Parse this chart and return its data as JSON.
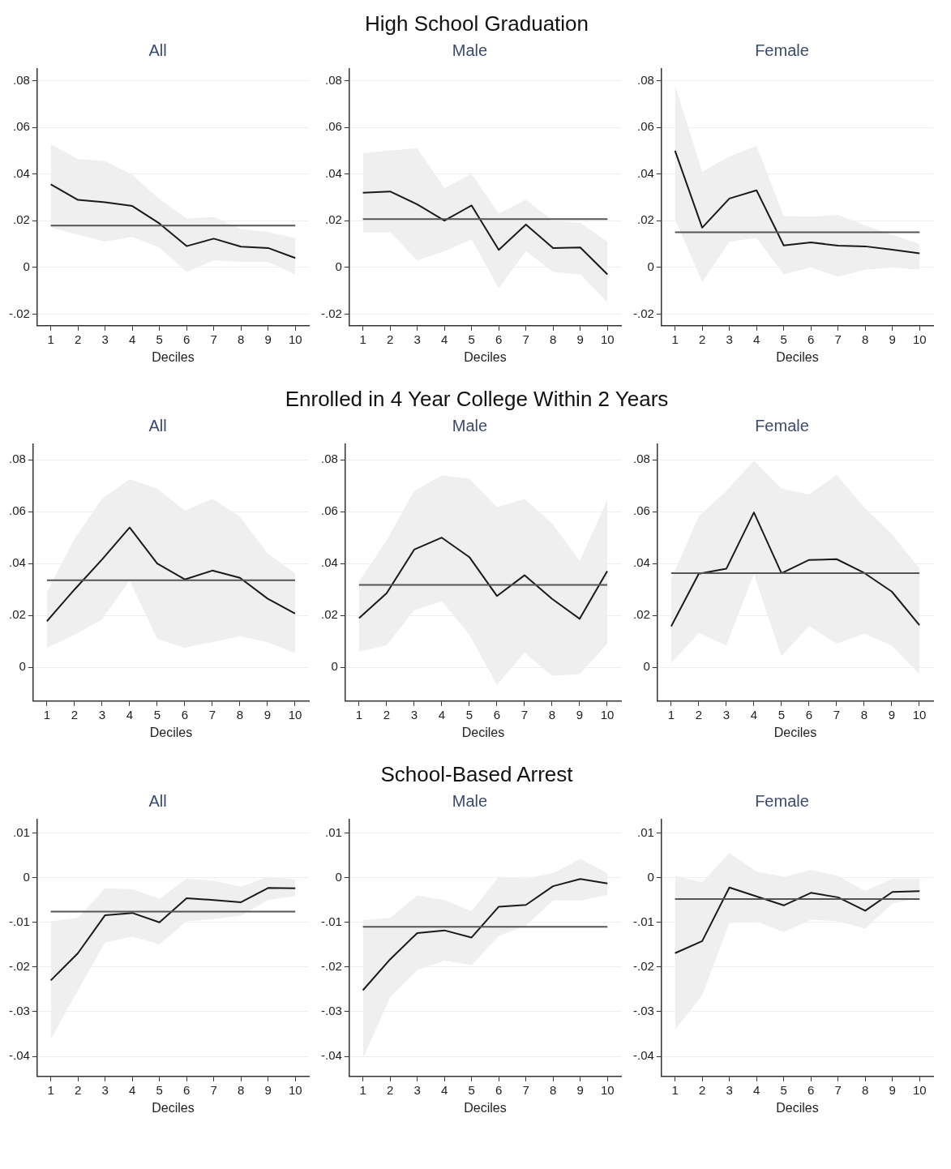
{
  "chart_data": [
    {
      "type": "line",
      "title": "All",
      "xlabel": "Deciles",
      "annotations": [
        "High School Graduation"
      ],
      "categories": [
        "1",
        "2",
        "3",
        "4",
        "5",
        "6",
        "7",
        "8",
        "9",
        "10"
      ],
      "ylim": [
        -0.025,
        0.085
      ],
      "yticks": [
        {
          "value": -0.02,
          "label": "-.02"
        },
        {
          "value": 0,
          "label": "0"
        },
        {
          "value": 0.02,
          "label": ".02"
        },
        {
          "value": 0.04,
          "label": ".04"
        },
        {
          "value": 0.06,
          "label": ".06"
        },
        {
          "value": 0.08,
          "label": ".08"
        }
      ],
      "grid": "y",
      "marker": "none",
      "series": [
        {
          "color": "#1a1a1a",
          "values": [
            0.0356,
            0.0289,
            0.0279,
            0.0263,
            0.0188,
            0.0091,
            0.0123,
            0.0089,
            0.0083,
            0.004
          ],
          "lower": [
            0.017,
            0.014,
            0.011,
            0.013,
            0.0085,
            -0.002,
            0.003,
            0.0024,
            0.0024,
            -0.003
          ],
          "upper": [
            0.0527,
            0.0465,
            0.0455,
            0.0396,
            0.0292,
            0.0209,
            0.0216,
            0.0164,
            0.0152,
            0.0125
          ]
        }
      ],
      "ref_lines": [
        {
          "axis": "y",
          "value": 0.0179,
          "color": "#555555"
        }
      ]
    },
    {
      "type": "line",
      "title": "Male",
      "xlabel": "Deciles",
      "categories": [
        "1",
        "2",
        "3",
        "4",
        "5",
        "6",
        "7",
        "8",
        "9",
        "10"
      ],
      "ylim": [
        -0.025,
        0.085
      ],
      "yticks": [
        {
          "value": -0.02,
          "label": "-.02"
        },
        {
          "value": 0,
          "label": "0"
        },
        {
          "value": 0.02,
          "label": ".02"
        },
        {
          "value": 0.04,
          "label": ".04"
        },
        {
          "value": 0.06,
          "label": ".06"
        },
        {
          "value": 0.08,
          "label": ".08"
        }
      ],
      "grid": "y",
      "marker": "none",
      "series": [
        {
          "color": "#1a1a1a",
          "values": [
            0.032,
            0.0325,
            0.027,
            0.02,
            0.0265,
            0.0075,
            0.0183,
            0.0083,
            0.0085,
            -0.003
          ],
          "lower": [
            0.015,
            0.015,
            0.003,
            0.007,
            0.012,
            -0.009,
            0.007,
            -0.002,
            -0.003,
            -0.015
          ],
          "upper": [
            0.049,
            0.05,
            0.051,
            0.034,
            0.04,
            0.023,
            0.029,
            0.02,
            0.019,
            0.011
          ]
        }
      ],
      "ref_lines": [
        {
          "axis": "y",
          "value": 0.0207,
          "color": "#555555"
        }
      ]
    },
    {
      "type": "line",
      "title": "Female",
      "xlabel": "Deciles",
      "categories": [
        "1",
        "2",
        "3",
        "4",
        "5",
        "6",
        "7",
        "8",
        "9",
        "10"
      ],
      "ylim": [
        -0.025,
        0.085
      ],
      "yticks": [
        {
          "value": -0.02,
          "label": "-.02"
        },
        {
          "value": 0,
          "label": "0"
        },
        {
          "value": 0.02,
          "label": ".02"
        },
        {
          "value": 0.04,
          "label": ".04"
        },
        {
          "value": 0.06,
          "label": ".06"
        },
        {
          "value": 0.08,
          "label": ".08"
        }
      ],
      "grid": "y",
      "marker": "none",
      "series": [
        {
          "color": "#1a1a1a",
          "values": [
            0.05,
            0.017,
            0.0295,
            0.033,
            0.0094,
            0.0107,
            0.0093,
            0.009,
            0.0076,
            0.006
          ],
          "lower": [
            0.0205,
            -0.0063,
            0.011,
            0.0126,
            -0.003,
            0,
            -0.004,
            -0.001,
            0,
            -0.001
          ],
          "upper": [
            0.078,
            0.041,
            0.0475,
            0.052,
            0.022,
            0.0217,
            0.0224,
            0.018,
            0.014,
            0.01
          ]
        }
      ],
      "ref_lines": [
        {
          "axis": "y",
          "value": 0.015,
          "color": "#555555"
        }
      ]
    },
    {
      "type": "line",
      "title": "All",
      "xlabel": "Deciles",
      "annotations": [
        "Enrolled in 4 Year College Within 2 Years"
      ],
      "categories": [
        "1",
        "2",
        "3",
        "4",
        "5",
        "6",
        "7",
        "8",
        "9",
        "10"
      ],
      "ylim": [
        -0.013,
        0.086
      ],
      "yticks": [
        {
          "value": 0,
          "label": "0"
        },
        {
          "value": 0.02,
          "label": ".02"
        },
        {
          "value": 0.04,
          "label": ".04"
        },
        {
          "value": 0.06,
          "label": ".06"
        },
        {
          "value": 0.08,
          "label": ".08"
        }
      ],
      "grid": "y",
      "marker": "none",
      "series": [
        {
          "color": "#1a1a1a",
          "values": [
            0.0178,
            0.03,
            0.0416,
            0.0539,
            0.04,
            0.0339,
            0.0373,
            0.0345,
            0.0265,
            0.0207
          ],
          "lower": [
            0.0076,
            0.0125,
            0.0185,
            0.0335,
            0.011,
            0.0076,
            0.0097,
            0.012,
            0.0097,
            0.0055
          ],
          "upper": [
            0.029,
            0.0496,
            0.065,
            0.0726,
            0.0689,
            0.0604,
            0.065,
            0.058,
            0.044,
            0.0363
          ]
        }
      ],
      "ref_lines": [
        {
          "axis": "y",
          "value": 0.0336,
          "color": "#555555"
        }
      ]
    },
    {
      "type": "line",
      "title": "Male",
      "xlabel": "Deciles",
      "categories": [
        "1",
        "2",
        "3",
        "4",
        "5",
        "6",
        "7",
        "8",
        "9",
        "10"
      ],
      "ylim": [
        -0.013,
        0.086
      ],
      "yticks": [
        {
          "value": 0,
          "label": "0"
        },
        {
          "value": 0.02,
          "label": ".02"
        },
        {
          "value": 0.04,
          "label": ".04"
        },
        {
          "value": 0.06,
          "label": ".06"
        },
        {
          "value": 0.08,
          "label": ".08"
        }
      ],
      "grid": "y",
      "marker": "none",
      "series": [
        {
          "color": "#1a1a1a",
          "values": [
            0.019,
            0.0286,
            0.0454,
            0.05,
            0.0425,
            0.0275,
            0.0355,
            0.0264,
            0.0187,
            0.0371
          ],
          "lower": [
            0.006,
            0.0085,
            0.022,
            0.0255,
            0.0126,
            -0.0068,
            0.0057,
            -0.0033,
            -0.0026,
            0.0091
          ],
          "upper": [
            0.033,
            0.049,
            0.068,
            0.074,
            0.0727,
            0.0617,
            0.065,
            0.0555,
            0.041,
            0.0645
          ]
        }
      ],
      "ref_lines": [
        {
          "axis": "y",
          "value": 0.0318,
          "color": "#555555"
        }
      ]
    },
    {
      "type": "line",
      "title": "Female",
      "xlabel": "Deciles",
      "categories": [
        "1",
        "2",
        "3",
        "4",
        "5",
        "6",
        "7",
        "8",
        "9",
        "10"
      ],
      "ylim": [
        -0.013,
        0.086
      ],
      "yticks": [
        {
          "value": 0,
          "label": "0"
        },
        {
          "value": 0.02,
          "label": ".02"
        },
        {
          "value": 0.04,
          "label": ".04"
        },
        {
          "value": 0.06,
          "label": ".06"
        },
        {
          "value": 0.08,
          "label": ".08"
        }
      ],
      "grid": "y",
      "marker": "none",
      "series": [
        {
          "color": "#1a1a1a",
          "values": [
            0.0158,
            0.0361,
            0.038,
            0.0597,
            0.0363,
            0.0414,
            0.0417,
            0.0364,
            0.0292,
            0.0163
          ],
          "lower": [
            0.0015,
            0.0133,
            0.0084,
            0.036,
            0.0043,
            0.016,
            0.0091,
            0.013,
            0.0084,
            -0.0026
          ],
          "upper": [
            0.034,
            0.0583,
            0.068,
            0.0797,
            0.069,
            0.0666,
            0.0742,
            0.0617,
            0.0513,
            0.0382
          ]
        }
      ],
      "ref_lines": [
        {
          "axis": "y",
          "value": 0.0363,
          "color": "#555555"
        }
      ]
    },
    {
      "type": "line",
      "title": "All",
      "xlabel": "Deciles",
      "annotations": [
        "School-Based Arrest"
      ],
      "categories": [
        "1",
        "2",
        "3",
        "4",
        "5",
        "6",
        "7",
        "8",
        "9",
        "10"
      ],
      "ylim": [
        -0.0445,
        0.013
      ],
      "yticks": [
        {
          "value": -0.04,
          "label": "-.04"
        },
        {
          "value": -0.03,
          "label": "-.03"
        },
        {
          "value": -0.02,
          "label": "-.02"
        },
        {
          "value": -0.01,
          "label": "-.01"
        },
        {
          "value": 0,
          "label": "0"
        },
        {
          "value": 0.01,
          "label": ".01"
        }
      ],
      "grid": "y",
      "marker": "none",
      "series": [
        {
          "color": "#1a1a1a",
          "values": [
            -0.023,
            -0.0169,
            -0.0084,
            -0.0079,
            -0.01,
            -0.0046,
            -0.005,
            -0.0055,
            -0.0023,
            -0.0024
          ],
          "lower": [
            -0.0362,
            -0.0252,
            -0.0145,
            -0.0132,
            -0.0149,
            -0.0098,
            -0.0093,
            -0.0085,
            -0.005,
            -0.0041
          ],
          "upper": [
            -0.0098,
            -0.009,
            -0.0024,
            -0.0026,
            -0.0047,
            -0.0002,
            -0.0007,
            -0.002,
            0.0002,
            -0.0004
          ]
        }
      ],
      "ref_lines": [
        {
          "axis": "y",
          "value": -0.0076,
          "color": "#555555"
        }
      ]
    },
    {
      "type": "line",
      "title": "Male",
      "xlabel": "Deciles",
      "categories": [
        "1",
        "2",
        "3",
        "4",
        "5",
        "6",
        "7",
        "8",
        "9",
        "10"
      ],
      "ylim": [
        -0.0445,
        0.013
      ],
      "yticks": [
        {
          "value": -0.04,
          "label": "-.04"
        },
        {
          "value": -0.03,
          "label": "-.03"
        },
        {
          "value": -0.02,
          "label": "-.02"
        },
        {
          "value": -0.01,
          "label": "-.01"
        },
        {
          "value": 0,
          "label": "0"
        },
        {
          "value": 0.01,
          "label": ".01"
        }
      ],
      "grid": "y",
      "marker": "none",
      "series": [
        {
          "color": "#1a1a1a",
          "values": [
            -0.0252,
            -0.0183,
            -0.0124,
            -0.0118,
            -0.0134,
            -0.0065,
            -0.0061,
            -0.0019,
            -0.0003,
            -0.0013
          ],
          "lower": [
            -0.0405,
            -0.0268,
            -0.0207,
            -0.0186,
            -0.0196,
            -0.0131,
            -0.0107,
            -0.0051,
            -0.0051,
            -0.0039
          ],
          "upper": [
            -0.0095,
            -0.009,
            -0.004,
            -0.005,
            -0.0075,
            0.0002,
            -0.0002,
            0.001,
            0.0042,
            0.001
          ]
        }
      ],
      "ref_lines": [
        {
          "axis": "y",
          "value": -0.011,
          "color": "#555555"
        }
      ]
    },
    {
      "type": "line",
      "title": "Female",
      "xlabel": "Deciles",
      "categories": [
        "1",
        "2",
        "3",
        "4",
        "5",
        "6",
        "7",
        "8",
        "9",
        "10"
      ],
      "ylim": [
        -0.0445,
        0.013
      ],
      "yticks": [
        {
          "value": -0.04,
          "label": "-.04"
        },
        {
          "value": -0.03,
          "label": "-.03"
        },
        {
          "value": -0.02,
          "label": "-.02"
        },
        {
          "value": -0.01,
          "label": "-.01"
        },
        {
          "value": 0,
          "label": "0"
        },
        {
          "value": 0.01,
          "label": ".01"
        }
      ],
      "grid": "y",
      "marker": "none",
      "series": [
        {
          "color": "#1a1a1a",
          "values": [
            -0.0169,
            -0.0142,
            -0.0022,
            -0.0042,
            -0.0062,
            -0.0034,
            -0.0044,
            -0.0074,
            -0.0032,
            -0.003
          ],
          "lower": [
            -0.0341,
            -0.0263,
            -0.0102,
            -0.0098,
            -0.0122,
            -0.0094,
            -0.0098,
            -0.0114,
            -0.0058,
            -0.0046
          ],
          "upper": [
            0.0004,
            -0.001,
            0.0055,
            0.0014,
            0.0002,
            0.0017,
            0.0004,
            -0.003,
            -0.0002,
            -0.0002
          ]
        }
      ],
      "ref_lines": [
        {
          "axis": "y",
          "value": -0.0048,
          "color": "#555555"
        }
      ]
    }
  ]
}
